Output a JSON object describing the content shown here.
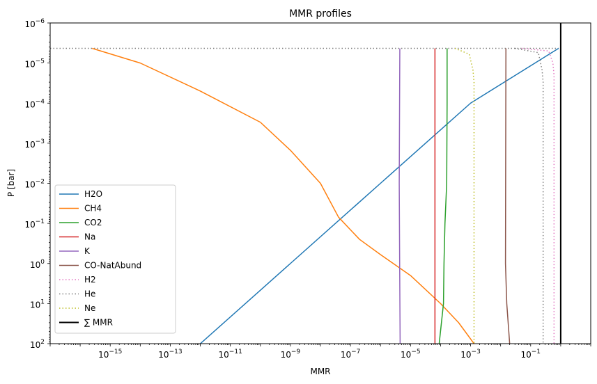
{
  "chart_data": {
    "type": "line",
    "title": "MMR profiles",
    "xlabel": "MMR",
    "ylabel": "P [bar]",
    "xscale": "log",
    "yscale": "log",
    "yaxis_inverted": true,
    "xlim": [
      1e-17,
      10
    ],
    "ylim": [
      100,
      1e-06
    ],
    "x_tick_labels": [
      {
        "value": 1e-15,
        "base": "10",
        "exp": "−15"
      },
      {
        "value": 1e-13,
        "base": "10",
        "exp": "−13"
      },
      {
        "value": 1e-11,
        "base": "10",
        "exp": "−11"
      },
      {
        "value": 1e-09,
        "base": "10",
        "exp": "−9"
      },
      {
        "value": 1e-07,
        "base": "10",
        "exp": "−7"
      },
      {
        "value": 1e-05,
        "base": "10",
        "exp": "−5"
      },
      {
        "value": 0.001,
        "base": "10",
        "exp": "−3"
      },
      {
        "value": 0.1,
        "base": "10",
        "exp": "−1"
      }
    ],
    "y_tick_labels": [
      {
        "value": 1e-06,
        "base": "10",
        "exp": "−6"
      },
      {
        "value": 1e-05,
        "base": "10",
        "exp": "−5"
      },
      {
        "value": 0.0001,
        "base": "10",
        "exp": "−4"
      },
      {
        "value": 0.001,
        "base": "10",
        "exp": "−3"
      },
      {
        "value": 0.01,
        "base": "10",
        "exp": "−2"
      },
      {
        "value": 0.1,
        "base": "10",
        "exp": "−1"
      },
      {
        "value": 1,
        "base": "10",
        "exp": "0"
      },
      {
        "value": 10,
        "base": "10",
        "exp": "1"
      },
      {
        "value": 100,
        "base": "10",
        "exp": "2"
      }
    ],
    "legend": {
      "position": "lower-left"
    },
    "series": [
      {
        "name": "H2O",
        "color": "#1f77b4",
        "dash": "solid",
        "points": [
          [
            1e-12,
            100
          ],
          [
            1e-09,
            1
          ],
          [
            1e-06,
            0.01
          ],
          [
            0.001,
            0.0001
          ],
          [
            0.85,
            4.3e-06
          ]
        ]
      },
      {
        "name": "CH4",
        "color": "#ff7f0e",
        "dash": "solid",
        "points": [
          [
            2.5e-16,
            4.3e-06
          ],
          [
            1e-14,
            1e-05
          ],
          [
            1e-12,
            5e-05
          ],
          [
            1e-10,
            0.0003
          ],
          [
            1e-09,
            0.0015
          ],
          [
            1e-08,
            0.01
          ],
          [
            4e-08,
            0.07
          ],
          [
            2e-07,
            0.25
          ],
          [
            1e-06,
            0.6
          ],
          [
            1e-05,
            2
          ],
          [
            0.0001,
            10
          ],
          [
            0.0004,
            30
          ],
          [
            0.0013,
            100
          ]
        ]
      },
      {
        "name": "CO2",
        "color": "#2ca02c",
        "dash": "solid",
        "points": [
          [
            0.000165,
            4.3e-06
          ],
          [
            0.000165,
            0.0001
          ],
          [
            0.00016,
            0.01
          ],
          [
            0.00014,
            0.1
          ],
          [
            0.00013,
            1
          ],
          [
            0.000125,
            10
          ],
          [
            9e-05,
            100
          ]
        ]
      },
      {
        "name": "Na",
        "color": "#d62728",
        "dash": "solid",
        "points": [
          [
            6.5e-05,
            4.3e-06
          ],
          [
            6.5e-05,
            1
          ],
          [
            6.5e-05,
            100
          ]
        ]
      },
      {
        "name": "K",
        "color": "#9467bd",
        "dash": "solid",
        "points": [
          [
            4.4e-06,
            4.3e-06
          ],
          [
            4.2e-06,
            0.01
          ],
          [
            4.5e-06,
            100
          ]
        ]
      },
      {
        "name": "CO-NatAbund",
        "color": "#8c564b",
        "dash": "solid",
        "points": [
          [
            0.015,
            4.3e-06
          ],
          [
            0.0145,
            1
          ],
          [
            0.016,
            10
          ],
          [
            0.02,
            100
          ]
        ]
      },
      {
        "name": "H2",
        "color": "#e377c2",
        "dash": "dotted",
        "points": [
          [
            0.05,
            4.3e-06
          ],
          [
            0.4,
            5e-06
          ],
          [
            0.55,
            1e-05
          ],
          [
            0.6,
            2e-05
          ],
          [
            0.6,
            100
          ]
        ]
      },
      {
        "name": "He",
        "color": "#7f7f7f",
        "dash": "dotted",
        "points": [
          [
            0.03,
            4.3e-06
          ],
          [
            0.18,
            5.5e-06
          ],
          [
            0.24,
            1.5e-05
          ],
          [
            0.26,
            3e-05
          ],
          [
            0.26,
            100
          ]
        ]
      },
      {
        "name": "Ne",
        "color": "#bcbd22",
        "dash": "dotted",
        "points": [
          [
            0.0003,
            4.3e-06
          ],
          [
            0.0009,
            6e-06
          ],
          [
            0.0012,
            1.5e-05
          ],
          [
            0.0013,
            3e-05
          ],
          [
            0.0013,
            100
          ]
        ]
      },
      {
        "name": "∑ MMR",
        "color": "#000000",
        "dash": "solid",
        "width": 2,
        "points": [
          [
            1,
            1e-06
          ],
          [
            1,
            100
          ]
        ]
      }
    ],
    "top_line": {
      "y": 4.3e-06,
      "x_start": 1e-17,
      "x_end": 0.85,
      "color": "#7f7f7f"
    }
  }
}
